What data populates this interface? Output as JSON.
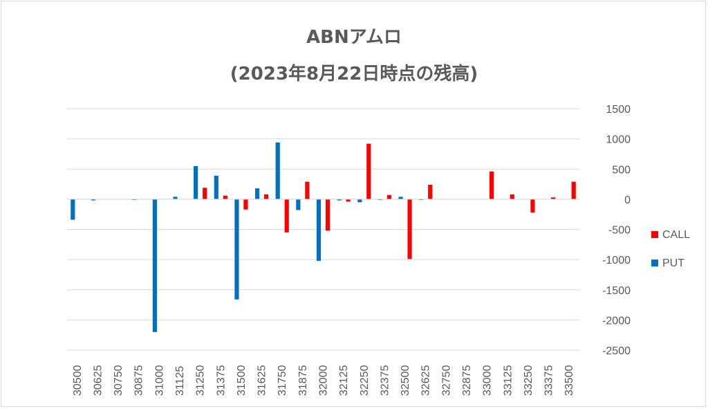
{
  "chart_data": {
    "type": "bar",
    "title": "ABNアムロ",
    "subtitle": "(2023年8月22日時点の残高)",
    "categories": [
      "30500",
      "30625",
      "30750",
      "30875",
      "31000",
      "31125",
      "31250",
      "31375",
      "31500",
      "31625",
      "31750",
      "31875",
      "32000",
      "32125",
      "32250",
      "32375",
      "32500",
      "32625",
      "32750",
      "32875",
      "33000",
      "33125",
      "33250",
      "33375",
      "33500"
    ],
    "series": [
      {
        "name": "PUT",
        "color": "#0070c0",
        "values": [
          -340,
          -20,
          0,
          -10,
          -2200,
          40,
          550,
          390,
          -1660,
          180,
          940,
          -180,
          -1020,
          -20,
          -50,
          -10,
          40,
          -10,
          0,
          0,
          0,
          0,
          0,
          0,
          0
        ]
      },
      {
        "name": "CALL",
        "color": "#ff0000",
        "values": [
          0,
          0,
          0,
          0,
          0,
          0,
          190,
          60,
          -170,
          80,
          -550,
          290,
          -520,
          -40,
          920,
          70,
          -990,
          240,
          0,
          0,
          460,
          80,
          -220,
          30,
          290
        ]
      }
    ],
    "ylim": [
      -2500,
      1500
    ],
    "yticks": [
      1500,
      1000,
      500,
      0,
      -500,
      -1000,
      -1500,
      -2000,
      -2500
    ],
    "y_axis_side": "right",
    "grid": true,
    "legend_position": "right",
    "legend_order": [
      "CALL",
      "PUT"
    ]
  }
}
